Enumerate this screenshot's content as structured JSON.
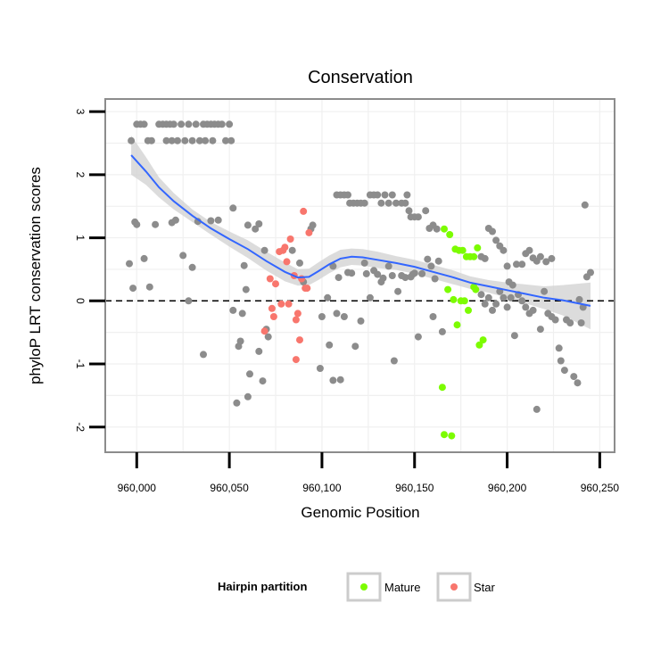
{
  "chart_data": {
    "type": "scatter",
    "title": "Conservation",
    "xlabel": "Genomic Position",
    "ylabel": "phyloP LRT conservation scores",
    "xlim": [
      959983,
      960258
    ],
    "ylim": [
      -2.4,
      3.2
    ],
    "x_ticks": [
      960000,
      960050,
      960100,
      960150,
      960200,
      960250
    ],
    "x_tick_labels": [
      "960,000",
      "960,050",
      "960,100",
      "960,150",
      "960,200",
      "960,250"
    ],
    "y_ticks": [
      -2,
      -1,
      0,
      1,
      2,
      3
    ],
    "y_tick_labels": [
      "-2",
      "-1",
      "0",
      "1",
      "2",
      "3"
    ],
    "reference_line": {
      "y": 0,
      "style": "dashed"
    },
    "grid": true,
    "colors": {
      "other": "#8c8c8c",
      "Mature": "#7cfc00",
      "Star": "#f8766d",
      "smooth": "#3366ff",
      "ribbon": "#d3d3d3",
      "panel_border": "#8c8c8c"
    },
    "legend": {
      "title": "Hairpin partition",
      "position": "bottom",
      "entries": [
        {
          "label": "Mature",
          "color": "#7cfc00"
        },
        {
          "label": "Star",
          "color": "#f8766d"
        }
      ]
    },
    "series": [
      {
        "name": "Other",
        "points": [
          [
            959997,
            2.54
          ],
          [
            960000,
            2.8
          ],
          [
            960002,
            2.8
          ],
          [
            960004,
            2.8
          ],
          [
            960006,
            2.54
          ],
          [
            960008,
            2.54
          ],
          [
            960012,
            2.8
          ],
          [
            960014,
            2.8
          ],
          [
            960016,
            2.8
          ],
          [
            960018,
            2.8
          ],
          [
            960020,
            2.8
          ],
          [
            960022,
            2.54
          ],
          [
            960024,
            2.8
          ],
          [
            960026,
            2.54
          ],
          [
            960028,
            2.8
          ],
          [
            960030,
            2.54
          ],
          [
            960032,
            2.8
          ],
          [
            960034,
            2.54
          ],
          [
            960036,
            2.8
          ],
          [
            960038,
            2.8
          ],
          [
            960040,
            2.8
          ],
          [
            960042,
            2.8
          ],
          [
            960044,
            2.8
          ],
          [
            960046,
            2.8
          ],
          [
            960048,
            2.54
          ],
          [
            960050,
            2.8
          ],
          [
            960051,
            2.54
          ],
          [
            960037,
            2.54
          ],
          [
            960041,
            2.54
          ],
          [
            960016,
            2.54
          ],
          [
            960019,
            2.54
          ],
          [
            959996,
            0.59
          ],
          [
            959998,
            0.2
          ],
          [
            959999,
            1.25
          ],
          [
            960000,
            1.21
          ],
          [
            960004,
            0.67
          ],
          [
            960007,
            0.22
          ],
          [
            960010,
            1.21
          ],
          [
            960019,
            1.24
          ],
          [
            960021,
            1.28
          ],
          [
            960025,
            0.72
          ],
          [
            960028,
            0.0
          ],
          [
            960030,
            0.53
          ],
          [
            960033,
            1.26
          ],
          [
            960036,
            -0.85
          ],
          [
            960040,
            1.27
          ],
          [
            960044,
            1.28
          ],
          [
            960052,
            1.47
          ],
          [
            960052,
            -0.15
          ],
          [
            960054,
            -1.62
          ],
          [
            960055,
            -0.72
          ],
          [
            960056,
            -0.64
          ],
          [
            960057,
            -0.2
          ],
          [
            960058,
            0.56
          ],
          [
            960059,
            0.18
          ],
          [
            960060,
            1.2
          ],
          [
            960060,
            -1.52
          ],
          [
            960061,
            -1.16
          ],
          [
            960064,
            1.14
          ],
          [
            960066,
            1.22
          ],
          [
            960066,
            -0.8
          ],
          [
            960068,
            -1.27
          ],
          [
            960069,
            0.8
          ],
          [
            960070,
            -0.45
          ],
          [
            960071,
            -0.57
          ],
          [
            960084,
            0.8
          ],
          [
            960088,
            0.6
          ],
          [
            960090,
            0.3
          ],
          [
            960094,
            1.14
          ],
          [
            960095,
            1.2
          ],
          [
            960099,
            -1.07
          ],
          [
            960100,
            -0.25
          ],
          [
            960103,
            0.05
          ],
          [
            960104,
            -0.7
          ],
          [
            960106,
            0.55
          ],
          [
            960106,
            -1.26
          ],
          [
            960108,
            -0.2
          ],
          [
            960109,
            0.37
          ],
          [
            960108,
            1.68
          ],
          [
            960110,
            1.68
          ],
          [
            960112,
            1.68
          ],
          [
            960114,
            1.68
          ],
          [
            960115,
            1.55
          ],
          [
            960117,
            1.55
          ],
          [
            960119,
            1.55
          ],
          [
            960121,
            1.55
          ],
          [
            960123,
            1.55
          ],
          [
            960126,
            1.68
          ],
          [
            960128,
            1.68
          ],
          [
            960130,
            1.68
          ],
          [
            960132,
            1.55
          ],
          [
            960134,
            1.68
          ],
          [
            960136,
            1.55
          ],
          [
            960138,
            1.68
          ],
          [
            960140,
            1.55
          ],
          [
            960143,
            1.55
          ],
          [
            960145,
            1.55
          ],
          [
            960146,
            1.68
          ],
          [
            960147,
            1.43
          ],
          [
            960148,
            1.33
          ],
          [
            960150,
            1.33
          ],
          [
            960152,
            1.33
          ],
          [
            960156,
            1.43
          ],
          [
            960158,
            1.15
          ],
          [
            960160,
            1.2
          ],
          [
            960162,
            1.14
          ],
          [
            960110,
            -1.25
          ],
          [
            960112,
            -0.25
          ],
          [
            960114,
            0.45
          ],
          [
            960116,
            0.44
          ],
          [
            960118,
            -0.72
          ],
          [
            960121,
            -0.32
          ],
          [
            960123,
            0.6
          ],
          [
            960124,
            0.43
          ],
          [
            960126,
            0.05
          ],
          [
            960128,
            0.48
          ],
          [
            960130,
            0.42
          ],
          [
            960132,
            0.3
          ],
          [
            960133,
            0.36
          ],
          [
            960136,
            0.55
          ],
          [
            960138,
            0.4
          ],
          [
            960139,
            -0.95
          ],
          [
            960141,
            0.15
          ],
          [
            960143,
            0.4
          ],
          [
            960145,
            0.37
          ],
          [
            960148,
            0.38
          ],
          [
            960149,
            0.42
          ],
          [
            960150,
            0.44
          ],
          [
            960152,
            -0.57
          ],
          [
            960154,
            0.43
          ],
          [
            960157,
            0.66
          ],
          [
            960159,
            0.55
          ],
          [
            960160,
            -0.25
          ],
          [
            960161,
            0.35
          ],
          [
            960163,
            0.63
          ],
          [
            960165,
            -0.49
          ],
          [
            960186,
            0.7
          ],
          [
            960188,
            0.67
          ],
          [
            960190,
            1.15
          ],
          [
            960192,
            1.1
          ],
          [
            960194,
            0.96
          ],
          [
            960196,
            0.87
          ],
          [
            960198,
            0.8
          ],
          [
            960200,
            0.55
          ],
          [
            960201,
            0.3
          ],
          [
            960203,
            0.25
          ],
          [
            960205,
            0.58
          ],
          [
            960208,
            0.58
          ],
          [
            960210,
            0.75
          ],
          [
            960212,
            0.8
          ],
          [
            960214,
            0.68
          ],
          [
            960216,
            0.63
          ],
          [
            960218,
            0.7
          ],
          [
            960221,
            0.62
          ],
          [
            960224,
            0.67
          ],
          [
            960242,
            1.52
          ],
          [
            960245,
            0.45
          ],
          [
            960243,
            0.38
          ],
          [
            960186,
            0.1
          ],
          [
            960188,
            -0.05
          ],
          [
            960190,
            0.05
          ],
          [
            960192,
            -0.15
          ],
          [
            960194,
            -0.05
          ],
          [
            960196,
            0.15
          ],
          [
            960198,
            0.05
          ],
          [
            960200,
            -0.1
          ],
          [
            960202,
            0.05
          ],
          [
            960204,
            -0.55
          ],
          [
            960206,
            0.1
          ],
          [
            960208,
            0.0
          ],
          [
            960210,
            -0.1
          ],
          [
            960212,
            -0.2
          ],
          [
            960214,
            -0.15
          ],
          [
            960216,
            -1.72
          ],
          [
            960218,
            -0.45
          ],
          [
            960220,
            0.15
          ],
          [
            960222,
            -0.2
          ],
          [
            960224,
            -0.25
          ],
          [
            960226,
            -0.3
          ],
          [
            960228,
            -0.75
          ],
          [
            960229,
            -0.95
          ],
          [
            960231,
            -1.1
          ],
          [
            960232,
            -0.3
          ],
          [
            960234,
            -0.35
          ],
          [
            960236,
            -1.2
          ],
          [
            960238,
            -1.3
          ],
          [
            960240,
            -0.35
          ],
          [
            960239,
            0.02
          ],
          [
            960241,
            -0.1
          ]
        ]
      },
      {
        "name": "Mature",
        "points": [
          [
            960166,
            1.14
          ],
          [
            960169,
            1.05
          ],
          [
            960172,
            0.82
          ],
          [
            960174,
            0.8
          ],
          [
            960176,
            0.8
          ],
          [
            960178,
            0.7
          ],
          [
            960180,
            0.7
          ],
          [
            960182,
            0.7
          ],
          [
            960184,
            0.84
          ],
          [
            960168,
            0.18
          ],
          [
            960171,
            0.02
          ],
          [
            960173,
            -0.38
          ],
          [
            960175,
            0.0
          ],
          [
            960177,
            0.0
          ],
          [
            960179,
            -0.15
          ],
          [
            960182,
            0.22
          ],
          [
            960183,
            0.18
          ],
          [
            960185,
            -0.7
          ],
          [
            960187,
            -0.62
          ],
          [
            960165,
            -1.37
          ],
          [
            960166,
            -2.12
          ],
          [
            960170,
            -2.14
          ]
        ]
      },
      {
        "name": "Star",
        "points": [
          [
            960069,
            -0.48
          ],
          [
            960072,
            0.35
          ],
          [
            960073,
            -0.12
          ],
          [
            960074,
            -0.25
          ],
          [
            960075,
            0.27
          ],
          [
            960077,
            0.78
          ],
          [
            960078,
            -0.05
          ],
          [
            960079,
            0.8
          ],
          [
            960080,
            0.85
          ],
          [
            960081,
            0.62
          ],
          [
            960082,
            -0.05
          ],
          [
            960083,
            0.98
          ],
          [
            960085,
            0.4
          ],
          [
            960086,
            -0.3
          ],
          [
            960086,
            -0.93
          ],
          [
            960087,
            -0.2
          ],
          [
            960088,
            -0.62
          ],
          [
            960089,
            0.35
          ],
          [
            960090,
            1.42
          ],
          [
            960091,
            0.2
          ],
          [
            960092,
            0.2
          ],
          [
            960093,
            1.08
          ]
        ]
      }
    ],
    "smooth": {
      "x": [
        959997,
        960005,
        960012,
        960020,
        960030,
        960040,
        960050,
        960060,
        960070,
        960080,
        960087,
        960093,
        960098,
        960104,
        960110,
        960116,
        960122,
        960130,
        960140,
        960150,
        960160,
        960170,
        960180,
        960190,
        960200,
        960210,
        960220,
        960230,
        960245
      ],
      "y": [
        2.31,
        2.05,
        1.8,
        1.58,
        1.35,
        1.15,
        0.98,
        0.82,
        0.63,
        0.46,
        0.37,
        0.38,
        0.47,
        0.58,
        0.67,
        0.7,
        0.69,
        0.65,
        0.6,
        0.54,
        0.46,
        0.38,
        0.29,
        0.23,
        0.17,
        0.11,
        0.05,
        0.01,
        -0.08
      ],
      "se_lower": [
        2.0,
        1.84,
        1.64,
        1.45,
        1.25,
        1.05,
        0.86,
        0.68,
        0.48,
        0.31,
        0.24,
        0.25,
        0.33,
        0.44,
        0.53,
        0.57,
        0.56,
        0.52,
        0.49,
        0.43,
        0.35,
        0.27,
        0.19,
        0.13,
        0.05,
        -0.04,
        -0.13,
        -0.23,
        -0.45
      ],
      "se_upper": [
        2.62,
        2.28,
        1.96,
        1.71,
        1.45,
        1.25,
        1.1,
        0.96,
        0.78,
        0.61,
        0.5,
        0.51,
        0.61,
        0.72,
        0.81,
        0.83,
        0.82,
        0.78,
        0.71,
        0.65,
        0.57,
        0.49,
        0.39,
        0.33,
        0.29,
        0.26,
        0.23,
        0.25,
        0.29
      ]
    }
  }
}
